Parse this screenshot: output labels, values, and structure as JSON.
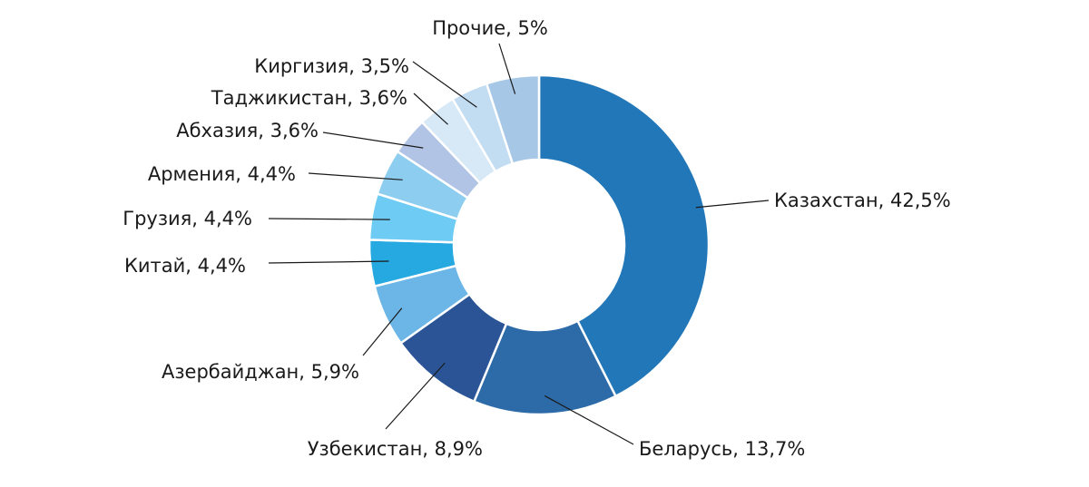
{
  "chart_data": {
    "type": "pie",
    "donut": true,
    "slices": [
      {
        "label": "Казахстан, 42,5%",
        "value": 42.5,
        "color": "#2277b9"
      },
      {
        "label": "Беларусь, 13,7%",
        "value": 13.7,
        "color": "#2d6aa8"
      },
      {
        "label": "Узбекистан, 8,9%",
        "value": 8.9,
        "color": "#2a5496"
      },
      {
        "label": "Азербайджан, 5,9%",
        "value": 5.9,
        "color": "#6bb6e6"
      },
      {
        "label": "Китай, 4,4%",
        "value": 4.4,
        "color": "#25a9e0"
      },
      {
        "label": "Грузия, 4,4%",
        "value": 4.4,
        "color": "#6ecbf3"
      },
      {
        "label": "Армения, 4,4%",
        "value": 4.4,
        "color": "#8dcdf0"
      },
      {
        "label": "Абхазия, 3,6%",
        "value": 3.6,
        "color": "#b2c4e6"
      },
      {
        "label": "Таджикистан, 3,6%",
        "value": 3.6,
        "color": "#d7e8f6"
      },
      {
        "label": "Киргизия, 3,5%",
        "value": 3.5,
        "color": "#c2dcf2"
      },
      {
        "label": "Прочие, 5%",
        "value": 5.0,
        "color": "#a7c7e7"
      }
    ]
  }
}
